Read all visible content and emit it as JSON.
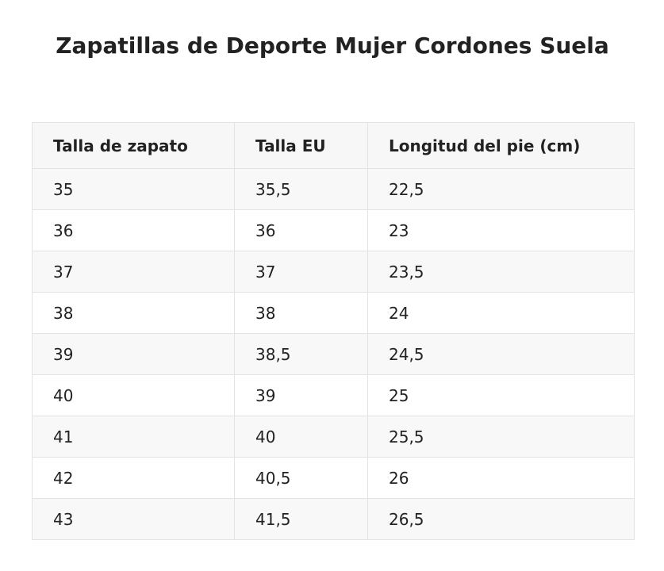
{
  "title": "Zapatillas de Deporte Mujer Cordones Suela",
  "table": {
    "headers": [
      "Talla de zapato",
      "Talla EU",
      "Longitud del pie (cm)"
    ],
    "rows": [
      [
        "35",
        "35,5",
        "22,5"
      ],
      [
        "36",
        "36",
        "23"
      ],
      [
        "37",
        "37",
        "23,5"
      ],
      [
        "38",
        "38",
        "24"
      ],
      [
        "39",
        "38,5",
        "24,5"
      ],
      [
        "40",
        "39",
        "25"
      ],
      [
        "41",
        "40",
        "25,5"
      ],
      [
        "42",
        "40,5",
        "26"
      ],
      [
        "43",
        "41,5",
        "26,5"
      ]
    ]
  }
}
